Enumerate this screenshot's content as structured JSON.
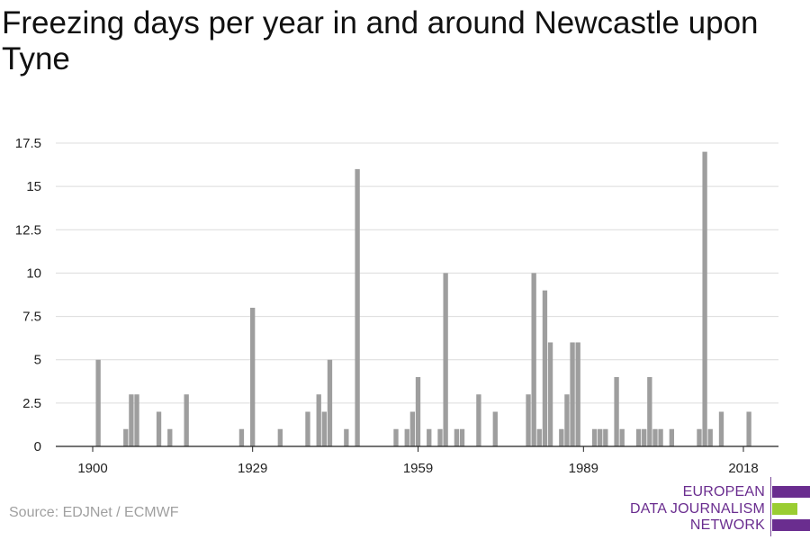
{
  "page": {
    "title": "Freezing days per year in and around Newcastle upon Tyne",
    "source": "Source: EDJNet / ECMWF"
  },
  "logo": {
    "line1": "EUROPEAN",
    "line2": "DATA JOURNALISM",
    "line3": "NETWORK",
    "colors": {
      "purple": "#6a2d8f",
      "green": "#9acd32"
    }
  },
  "chart_data": {
    "type": "bar",
    "title": "Freezing days per year in and around Newcastle upon Tyne",
    "xlabel": "",
    "ylabel": "",
    "xlim": [
      1898,
      2024
    ],
    "ylim": [
      0,
      17.5
    ],
    "y_ticks": [
      0,
      2.5,
      5,
      7.5,
      10,
      12.5,
      15,
      17.5
    ],
    "y_tick_labels": [
      "0",
      "2.5",
      "5",
      "7.5",
      "10",
      "12.5",
      "15",
      "17.5"
    ],
    "x_ticks": [
      1900,
      1929,
      1959,
      1989,
      2018
    ],
    "x_tick_labels": [
      "1900",
      "1929",
      "1959",
      "1989",
      "2018"
    ],
    "grid": true,
    "bar_color": "#9e9e9e",
    "categories": [
      1901,
      1906,
      1907,
      1908,
      1912,
      1914,
      1917,
      1927,
      1929,
      1934,
      1939,
      1941,
      1942,
      1943,
      1946,
      1948,
      1955,
      1957,
      1958,
      1959,
      1961,
      1963,
      1964,
      1966,
      1967,
      1970,
      1973,
      1979,
      1980,
      1981,
      1982,
      1983,
      1985,
      1986,
      1987,
      1988,
      1991,
      1992,
      1993,
      1995,
      1996,
      1999,
      2000,
      2001,
      2002,
      2003,
      2005,
      2010,
      2011,
      2012,
      2014,
      2019
    ],
    "values": [
      5,
      1,
      3,
      3,
      2,
      1,
      3,
      1,
      8,
      1,
      2,
      3,
      2,
      5,
      1,
      16,
      1,
      1,
      2,
      4,
      1,
      1,
      10,
      1,
      1,
      3,
      2,
      3,
      10,
      1,
      9,
      6,
      1,
      3,
      6,
      6,
      1,
      1,
      1,
      4,
      1,
      1,
      1,
      4,
      1,
      1,
      1,
      1,
      17,
      1,
      2,
      2
    ]
  }
}
